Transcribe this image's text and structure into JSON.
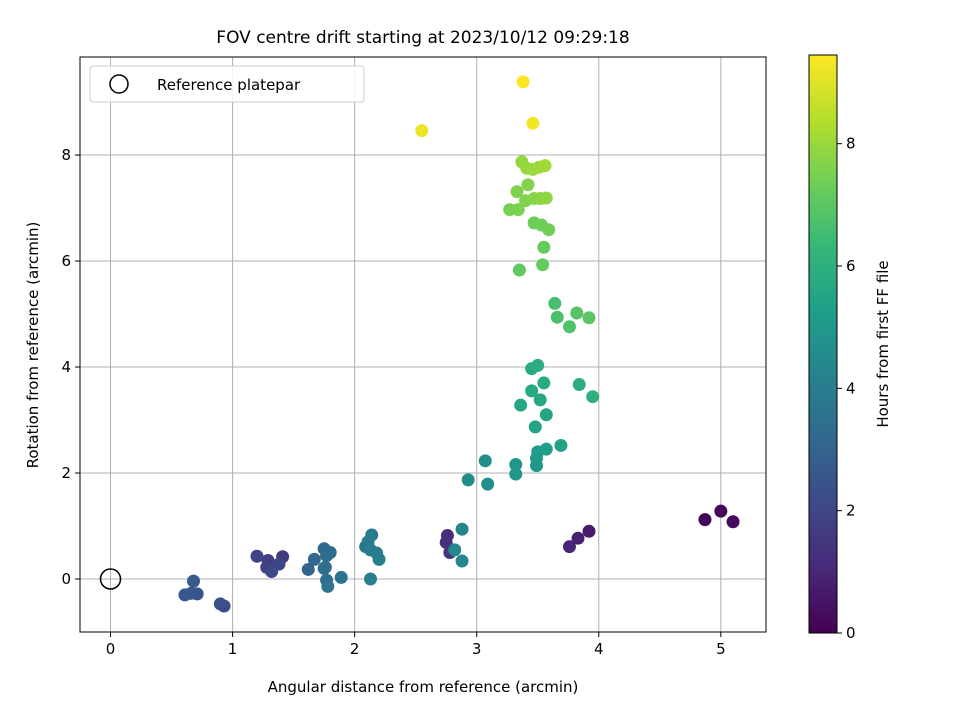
{
  "chart_data": {
    "type": "scatter",
    "title": "FOV centre drift starting at 2023/10/12 09:29:18",
    "xlabel": "Angular distance from reference (arcmin)",
    "ylabel": "Rotation from reference (arcmin)",
    "xlim": [
      -0.25,
      5.37
    ],
    "ylim": [
      -1.0,
      9.85
    ],
    "x_ticks": [
      0,
      1,
      2,
      3,
      4,
      5
    ],
    "y_ticks": [
      0,
      2,
      4,
      6,
      8
    ],
    "grid": true,
    "legend": {
      "placement": "top-left",
      "entries": [
        {
          "label": "Reference platepar",
          "marker": "open-circle"
        }
      ]
    },
    "reference_point": {
      "x": 0,
      "y": 0
    },
    "colorbar": {
      "label": "Hours from first FF file",
      "range": [
        0,
        9.45
      ],
      "ticks": [
        0,
        2,
        4,
        6,
        8
      ],
      "colormap": "viridis",
      "stops": [
        "#440154",
        "#482878",
        "#3e4989",
        "#31688e",
        "#26828e",
        "#1f9e89",
        "#35b779",
        "#6ece58",
        "#b5de2b",
        "#fde725"
      ]
    },
    "points": [
      {
        "x": 4.87,
        "y": 1.12,
        "c": 0.05
      },
      {
        "x": 5.0,
        "y": 1.28,
        "c": 0.15
      },
      {
        "x": 5.1,
        "y": 1.08,
        "c": 0.25
      },
      {
        "x": 3.92,
        "y": 0.9,
        "c": 0.7
      },
      {
        "x": 3.83,
        "y": 0.77,
        "c": 0.85
      },
      {
        "x": 3.76,
        "y": 0.61,
        "c": 1.0
      },
      {
        "x": 2.76,
        "y": 0.82,
        "c": 1.2
      },
      {
        "x": 2.75,
        "y": 0.69,
        "c": 1.3
      },
      {
        "x": 2.78,
        "y": 0.5,
        "c": 1.4
      },
      {
        "x": 1.41,
        "y": 0.42,
        "c": 1.6
      },
      {
        "x": 1.29,
        "y": 0.35,
        "c": 1.7
      },
      {
        "x": 1.28,
        "y": 0.22,
        "c": 1.8
      },
      {
        "x": 1.2,
        "y": 0.43,
        "c": 1.9
      },
      {
        "x": 1.38,
        "y": 0.28,
        "c": 2.0
      },
      {
        "x": 1.32,
        "y": 0.14,
        "c": 2.1
      },
      {
        "x": 0.93,
        "y": -0.51,
        "c": 2.2
      },
      {
        "x": 0.9,
        "y": -0.47,
        "c": 2.3
      },
      {
        "x": 0.71,
        "y": -0.28,
        "c": 2.4
      },
      {
        "x": 0.66,
        "y": -0.27,
        "c": 2.5
      },
      {
        "x": 0.61,
        "y": -0.3,
        "c": 2.6
      },
      {
        "x": 0.68,
        "y": -0.04,
        "c": 2.7
      },
      {
        "x": 1.62,
        "y": 0.18,
        "c": 3.0
      },
      {
        "x": 1.67,
        "y": 0.37,
        "c": 3.1
      },
      {
        "x": 1.75,
        "y": 0.57,
        "c": 3.2
      },
      {
        "x": 1.8,
        "y": 0.5,
        "c": 3.3
      },
      {
        "x": 1.77,
        "y": 0.44,
        "c": 3.35
      },
      {
        "x": 1.76,
        "y": 0.22,
        "c": 3.4
      },
      {
        "x": 1.75,
        "y": 0.2,
        "c": 3.45
      },
      {
        "x": 1.77,
        "y": -0.02,
        "c": 3.5
      },
      {
        "x": 1.78,
        "y": -0.14,
        "c": 3.55
      },
      {
        "x": 1.89,
        "y": 0.03,
        "c": 3.6
      },
      {
        "x": 2.09,
        "y": 0.61,
        "c": 3.8
      },
      {
        "x": 2.11,
        "y": 0.7,
        "c": 3.85
      },
      {
        "x": 2.14,
        "y": 0.83,
        "c": 3.9
      },
      {
        "x": 2.13,
        "y": 0.55,
        "c": 3.95
      },
      {
        "x": 2.18,
        "y": 0.49,
        "c": 4.0
      },
      {
        "x": 2.2,
        "y": 0.37,
        "c": 4.05
      },
      {
        "x": 2.13,
        "y": 0.0,
        "c": 4.1
      },
      {
        "x": 2.88,
        "y": 0.94,
        "c": 4.3
      },
      {
        "x": 2.82,
        "y": 0.55,
        "c": 4.35
      },
      {
        "x": 2.88,
        "y": 0.34,
        "c": 4.4
      },
      {
        "x": 2.93,
        "y": 1.87,
        "c": 4.6
      },
      {
        "x": 3.07,
        "y": 2.23,
        "c": 4.65
      },
      {
        "x": 3.09,
        "y": 1.79,
        "c": 4.7
      },
      {
        "x": 3.32,
        "y": 2.16,
        "c": 4.9
      },
      {
        "x": 3.32,
        "y": 1.98,
        "c": 4.95
      },
      {
        "x": 3.49,
        "y": 2.14,
        "c": 5.0
      },
      {
        "x": 3.49,
        "y": 2.28,
        "c": 5.1
      },
      {
        "x": 3.5,
        "y": 2.4,
        "c": 5.2
      },
      {
        "x": 3.57,
        "y": 2.45,
        "c": 5.3
      },
      {
        "x": 3.69,
        "y": 2.52,
        "c": 5.4
      },
      {
        "x": 3.48,
        "y": 2.87,
        "c": 5.5
      },
      {
        "x": 3.57,
        "y": 3.1,
        "c": 5.55
      },
      {
        "x": 3.36,
        "y": 3.28,
        "c": 5.6
      },
      {
        "x": 3.52,
        "y": 3.38,
        "c": 5.65
      },
      {
        "x": 3.45,
        "y": 3.55,
        "c": 5.7
      },
      {
        "x": 3.55,
        "y": 3.7,
        "c": 5.75
      },
      {
        "x": 3.45,
        "y": 3.97,
        "c": 5.8
      },
      {
        "x": 3.5,
        "y": 4.03,
        "c": 5.85
      },
      {
        "x": 3.84,
        "y": 3.67,
        "c": 5.9
      },
      {
        "x": 3.95,
        "y": 3.44,
        "c": 5.95
      },
      {
        "x": 3.64,
        "y": 5.2,
        "c": 6.6
      },
      {
        "x": 3.66,
        "y": 4.94,
        "c": 6.7
      },
      {
        "x": 3.76,
        "y": 4.76,
        "c": 6.8
      },
      {
        "x": 3.82,
        "y": 5.02,
        "c": 6.9
      },
      {
        "x": 3.92,
        "y": 4.93,
        "c": 7.0
      },
      {
        "x": 3.35,
        "y": 5.83,
        "c": 7.1
      },
      {
        "x": 3.54,
        "y": 5.93,
        "c": 7.15
      },
      {
        "x": 3.55,
        "y": 6.26,
        "c": 7.2
      },
      {
        "x": 3.47,
        "y": 6.72,
        "c": 7.3
      },
      {
        "x": 3.53,
        "y": 6.68,
        "c": 7.35
      },
      {
        "x": 3.59,
        "y": 6.59,
        "c": 7.4
      },
      {
        "x": 3.27,
        "y": 6.97,
        "c": 7.5
      },
      {
        "x": 3.34,
        "y": 6.97,
        "c": 7.55
      },
      {
        "x": 3.33,
        "y": 7.31,
        "c": 7.6
      },
      {
        "x": 3.4,
        "y": 7.14,
        "c": 7.65
      },
      {
        "x": 3.42,
        "y": 7.44,
        "c": 7.7
      },
      {
        "x": 3.47,
        "y": 7.18,
        "c": 7.75
      },
      {
        "x": 3.52,
        "y": 7.18,
        "c": 7.8
      },
      {
        "x": 3.57,
        "y": 7.19,
        "c": 7.85
      },
      {
        "x": 3.37,
        "y": 7.87,
        "c": 7.9
      },
      {
        "x": 3.41,
        "y": 7.75,
        "c": 7.95
      },
      {
        "x": 3.46,
        "y": 7.73,
        "c": 8.0
      },
      {
        "x": 3.51,
        "y": 7.77,
        "c": 8.05
      },
      {
        "x": 3.56,
        "y": 7.8,
        "c": 8.1
      },
      {
        "x": 2.55,
        "y": 8.46,
        "c": 9.2
      },
      {
        "x": 3.46,
        "y": 8.6,
        "c": 9.3
      },
      {
        "x": 3.38,
        "y": 9.38,
        "c": 9.45
      }
    ]
  }
}
